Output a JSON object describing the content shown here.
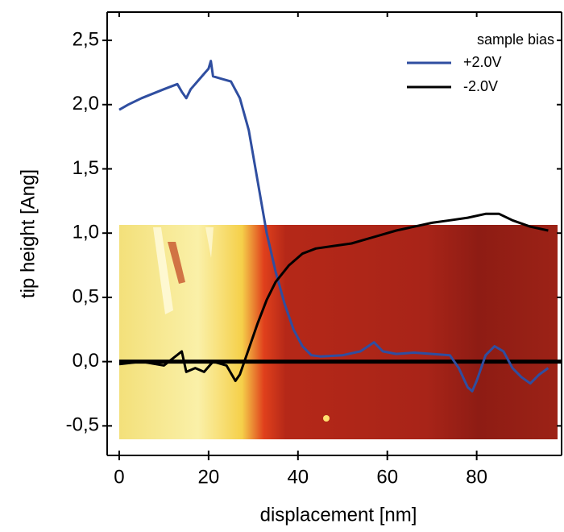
{
  "chart_data": {
    "type": "line",
    "xlabel": "displacement [nm]",
    "ylabel": "tip height [Ang]",
    "legend_title": "sample bias",
    "legend": "upper right",
    "xlim": [
      -2.7,
      99
    ],
    "ylim": [
      -0.73,
      2.72
    ],
    "xticks": [
      0,
      20,
      40,
      60,
      80
    ],
    "yticks": [
      {
        "value": -0.5,
        "label": "-0,5"
      },
      {
        "value": 0,
        "label": "0,0"
      },
      {
        "value": 0.5,
        "label": "0,5"
      },
      {
        "value": 1,
        "label": "1,0"
      },
      {
        "value": 1.5,
        "label": "1,5"
      },
      {
        "value": 2,
        "label": "2,0"
      },
      {
        "value": 2.5,
        "label": "2,5"
      }
    ],
    "series": [
      {
        "name": "+2.0V",
        "color": "#2f4ea0",
        "x": [
          0,
          2,
          5,
          10,
          13,
          14,
          15,
          16,
          18,
          20,
          20.5,
          21,
          23,
          25,
          27,
          29,
          31,
          33,
          35,
          37,
          39,
          41,
          43,
          45,
          50,
          54,
          57,
          59,
          62,
          66,
          70,
          74,
          76,
          78,
          79,
          80,
          82,
          84,
          86,
          88,
          90,
          92,
          94,
          96
        ],
        "values": [
          1.96,
          2.0,
          2.05,
          2.12,
          2.16,
          2.1,
          2.05,
          2.12,
          2.2,
          2.28,
          2.34,
          2.22,
          2.2,
          2.18,
          2.05,
          1.8,
          1.4,
          1.0,
          0.7,
          0.45,
          0.25,
          0.12,
          0.05,
          0.04,
          0.05,
          0.08,
          0.15,
          0.08,
          0.06,
          0.07,
          0.06,
          0.05,
          -0.05,
          -0.2,
          -0.23,
          -0.15,
          0.05,
          0.12,
          0.08,
          -0.05,
          -0.12,
          -0.17,
          -0.1,
          -0.05
        ]
      },
      {
        "name": "-2.0V",
        "color": "#000000",
        "x": [
          0,
          5,
          10,
          14,
          15,
          17,
          19,
          21,
          24,
          26,
          27,
          29,
          31,
          33,
          35,
          38,
          41,
          44,
          48,
          52,
          55,
          58,
          62,
          66,
          70,
          74,
          78,
          82,
          85,
          88,
          92,
          96
        ],
        "values": [
          -0.02,
          0.0,
          -0.03,
          0.08,
          -0.08,
          -0.05,
          -0.08,
          0.0,
          -0.03,
          -0.15,
          -0.1,
          0.1,
          0.3,
          0.48,
          0.62,
          0.75,
          0.84,
          0.88,
          0.9,
          0.92,
          0.95,
          0.98,
          1.02,
          1.05,
          1.08,
          1.1,
          1.12,
          1.15,
          1.15,
          1.1,
          1.05,
          1.02
        ]
      }
    ]
  }
}
